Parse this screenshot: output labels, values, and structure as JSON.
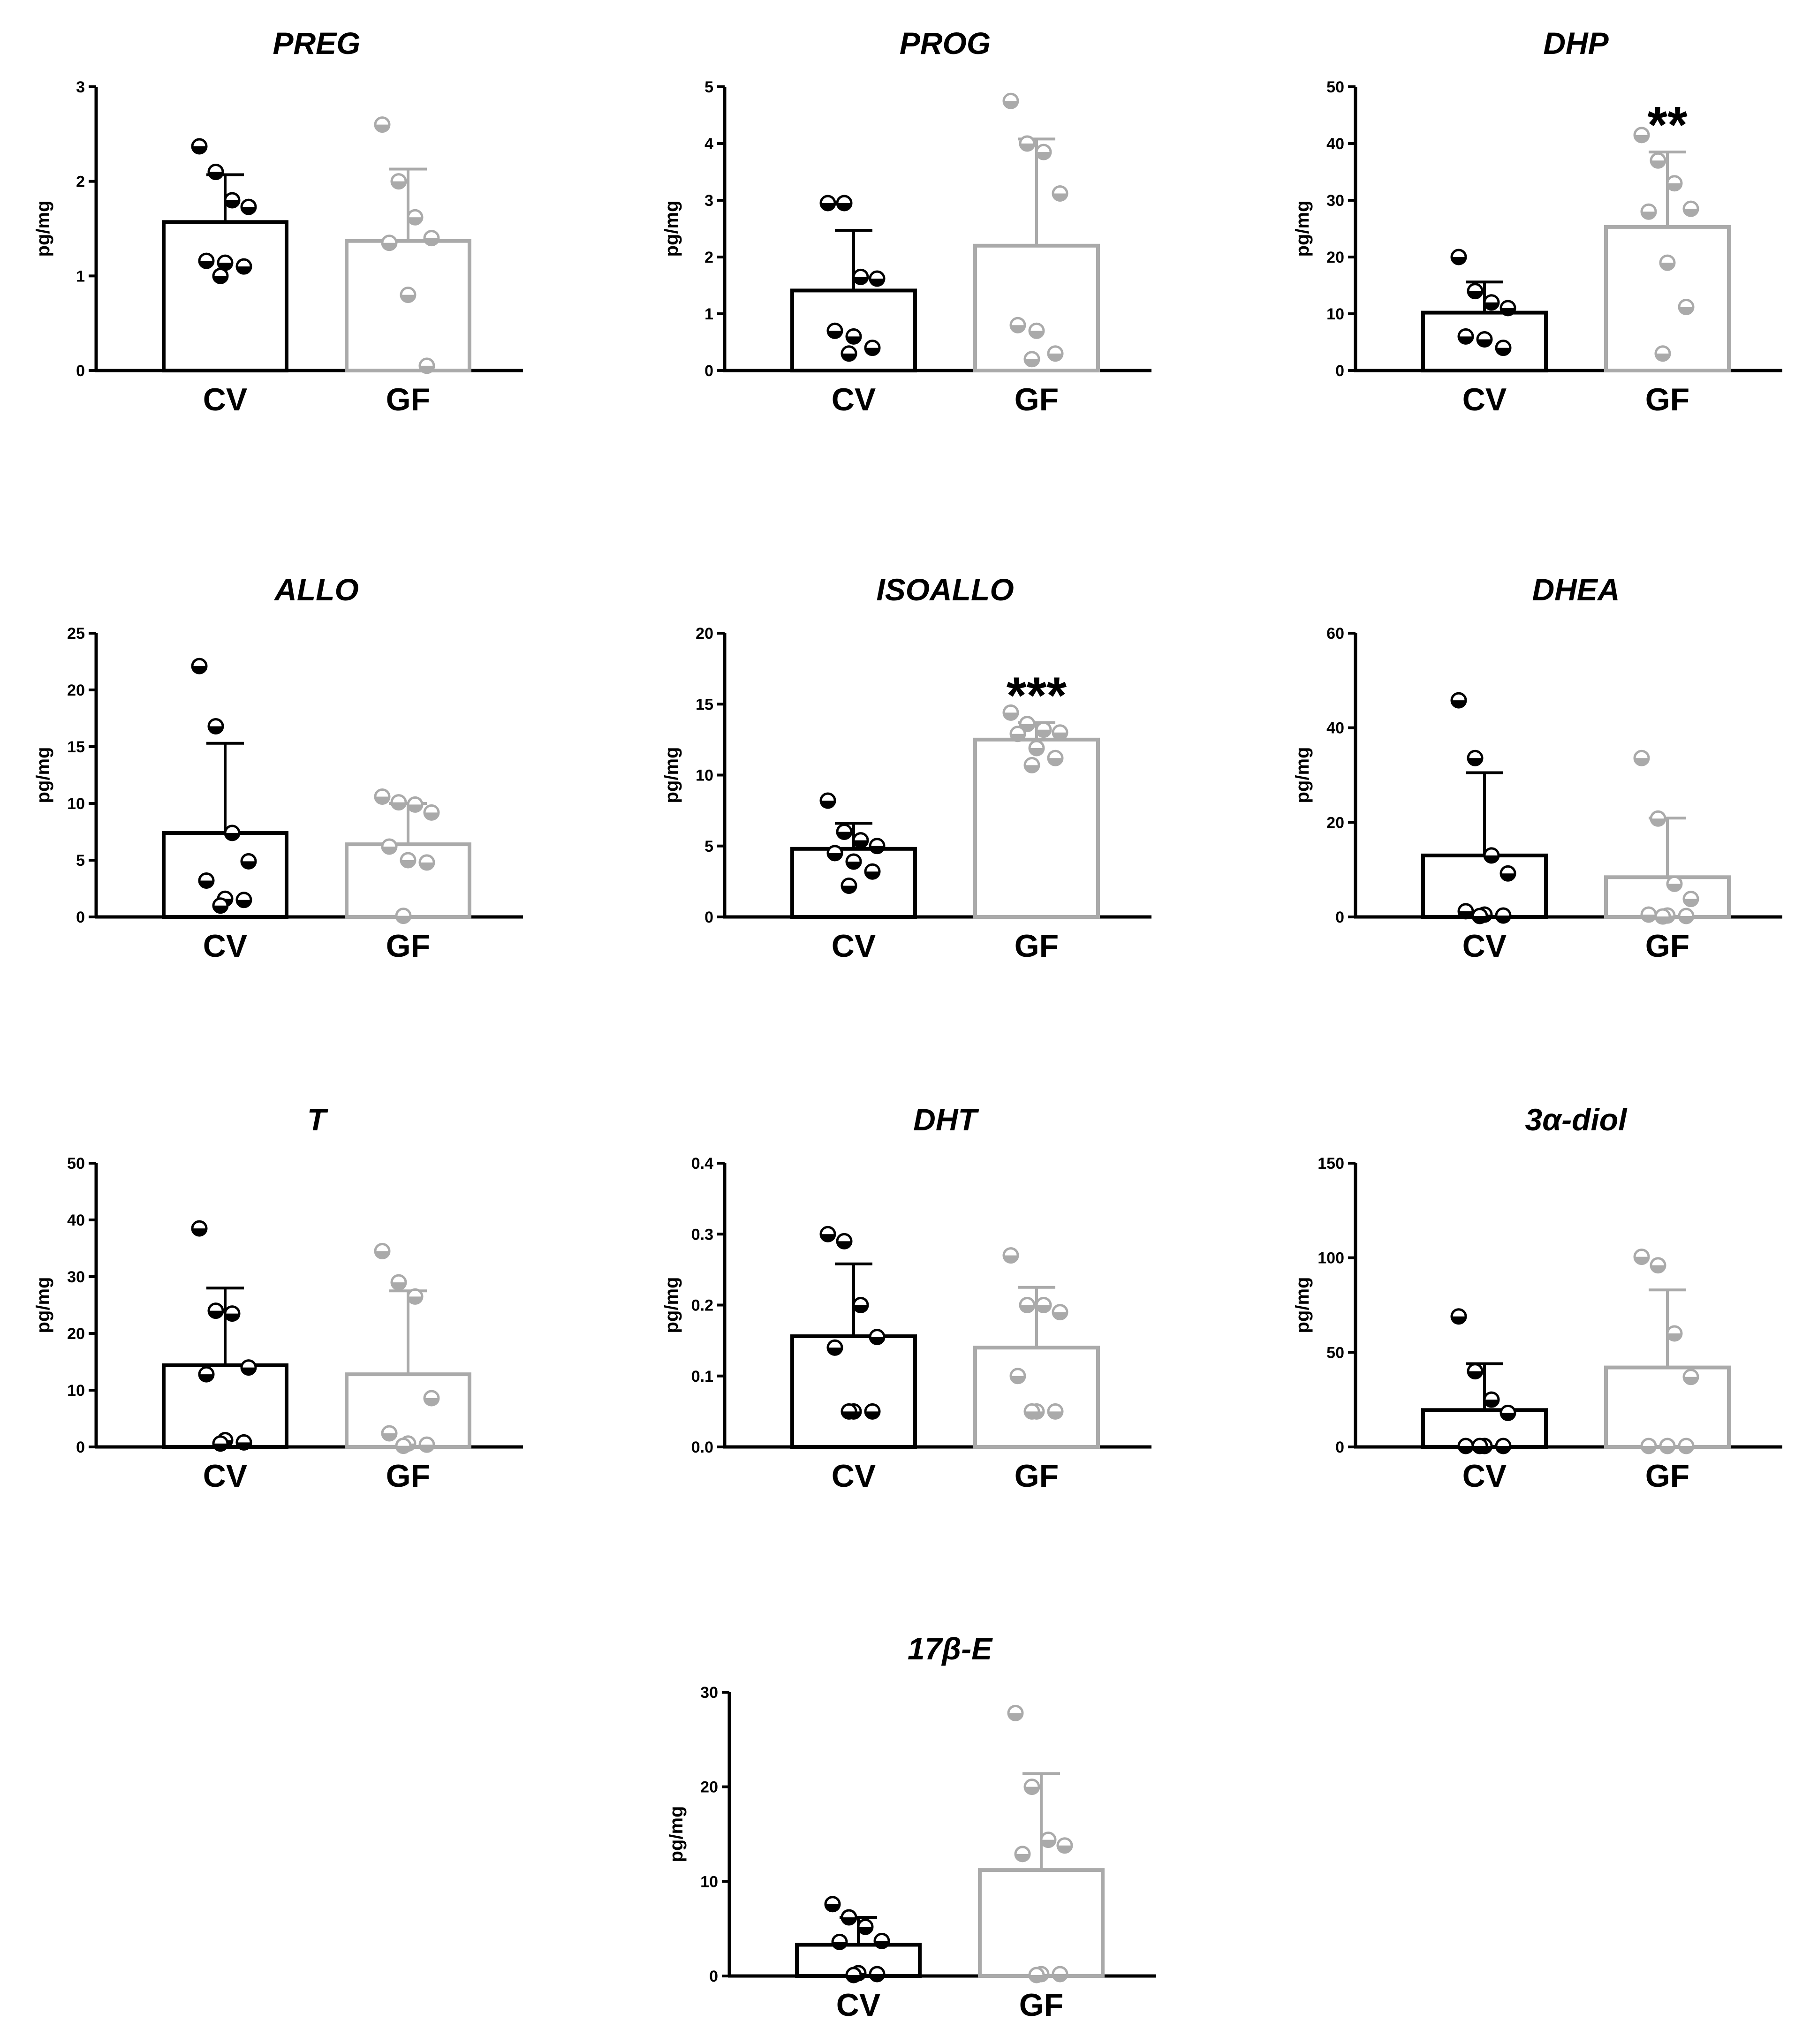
{
  "colors": {
    "cv": "#000000",
    "gf": "#aaaaaa"
  },
  "chart_data": [
    {
      "type": "bar",
      "title": "PREG",
      "ylabel": "pg/mg",
      "categories": [
        "CV",
        "GF"
      ],
      "ylim": [
        0,
        3
      ],
      "yticks": [
        "0",
        "1",
        "2",
        "3"
      ],
      "ytick_values": [
        0,
        1,
        2,
        3
      ],
      "series": [
        {
          "name": "CV",
          "value": 1.57,
          "sd": 0.5,
          "points": [
            2.37,
            2.1,
            1.8,
            1.73,
            1.16,
            1.14,
            1.1,
            1.0
          ]
        },
        {
          "name": "GF",
          "value": 1.37,
          "sd": 0.76,
          "points": [
            2.6,
            2.0,
            1.62,
            1.4,
            1.35,
            0.8,
            0.05
          ]
        }
      ],
      "significance": ""
    },
    {
      "type": "bar",
      "title": "PROG",
      "ylabel": "pg/mg",
      "categories": [
        "CV",
        "GF"
      ],
      "ylim": [
        0,
        5
      ],
      "yticks": [
        "0",
        "1",
        "2",
        "3",
        "4",
        "5"
      ],
      "ytick_values": [
        0,
        1,
        2,
        3,
        4,
        5
      ],
      "series": [
        {
          "name": "CV",
          "value": 1.41,
          "sd": 1.06,
          "points": [
            2.95,
            2.95,
            1.65,
            1.62,
            0.7,
            0.6,
            0.4,
            0.3
          ]
        },
        {
          "name": "GF",
          "value": 2.2,
          "sd": 1.88,
          "points": [
            4.75,
            4.0,
            3.85,
            3.12,
            0.8,
            0.7,
            0.3,
            0.2
          ]
        }
      ],
      "significance": ""
    },
    {
      "type": "bar",
      "title": "DHP",
      "ylabel": "pg/mg",
      "categories": [
        "CV",
        "GF"
      ],
      "ylim": [
        0,
        50
      ],
      "yticks": [
        "0",
        "10",
        "20",
        "30",
        "40",
        "50"
      ],
      "ytick_values": [
        0,
        10,
        20,
        30,
        40,
        50
      ],
      "series": [
        {
          "name": "CV",
          "value": 10.2,
          "sd": 5.4,
          "points": [
            20.0,
            14.0,
            12.0,
            11.0,
            6.0,
            5.5,
            4.0
          ]
        },
        {
          "name": "GF",
          "value": 25.3,
          "sd": 13.2,
          "points": [
            41.5,
            37.0,
            33.0,
            28.5,
            28.0,
            19.0,
            11.2,
            3.0
          ]
        }
      ],
      "significance": "**"
    },
    {
      "type": "bar",
      "title": "ALLO",
      "ylabel": "pg/mg",
      "categories": [
        "CV",
        "GF"
      ],
      "ylim": [
        0,
        25
      ],
      "yticks": [
        "0",
        "5",
        "10",
        "15",
        "20",
        "25"
      ],
      "ytick_values": [
        0,
        5,
        10,
        15,
        20,
        25
      ],
      "series": [
        {
          "name": "CV",
          "value": 7.4,
          "sd": 7.9,
          "points": [
            22.1,
            16.8,
            7.4,
            4.9,
            3.2,
            1.6,
            1.5,
            1.0
          ]
        },
        {
          "name": "GF",
          "value": 6.4,
          "sd": 3.6,
          "points": [
            10.6,
            10.1,
            9.9,
            9.2,
            6.2,
            5.0,
            4.8,
            0.1
          ]
        }
      ],
      "significance": ""
    },
    {
      "type": "bar",
      "title": "ISOALLO",
      "ylabel": "pg/mg",
      "categories": [
        "CV",
        "GF"
      ],
      "ylim": [
        0,
        20
      ],
      "yticks": [
        "0",
        "5",
        "10",
        "15",
        "20"
      ],
      "ytick_values": [
        0,
        5,
        10,
        15,
        20
      ],
      "series": [
        {
          "name": "CV",
          "value": 4.8,
          "sd": 1.8,
          "points": [
            8.2,
            6.0,
            5.4,
            5.0,
            4.5,
            3.9,
            3.2,
            2.2
          ]
        },
        {
          "name": "GF",
          "value": 12.5,
          "sd": 1.2,
          "points": [
            14.4,
            13.6,
            13.2,
            13.0,
            12.9,
            11.9,
            11.2,
            10.7
          ]
        }
      ],
      "significance": "***"
    },
    {
      "type": "bar",
      "title": "DHEA",
      "ylabel": "pg/mg",
      "categories": [
        "CV",
        "GF"
      ],
      "ylim": [
        0,
        60
      ],
      "yticks": [
        "0",
        "20",
        "40",
        "60"
      ],
      "ytick_values": [
        0,
        20,
        40,
        60
      ],
      "series": [
        {
          "name": "CV",
          "value": 13.0,
          "sd": 17.5,
          "points": [
            45.8,
            33.6,
            13.0,
            9.2,
            1.2,
            0.5,
            0.3,
            0.2
          ]
        },
        {
          "name": "GF",
          "value": 8.4,
          "sd": 12.5,
          "points": [
            33.6,
            20.8,
            7.0,
            3.8,
            0.5,
            0.3,
            0.2,
            0.1
          ]
        }
      ],
      "significance": ""
    },
    {
      "type": "bar",
      "title": "T",
      "ylabel": "pg/mg",
      "categories": [
        "CV",
        "GF"
      ],
      "ylim": [
        0,
        50
      ],
      "yticks": [
        "0",
        "10",
        "20",
        "30",
        "40",
        "50"
      ],
      "ytick_values": [
        0,
        10,
        20,
        30,
        40,
        50
      ],
      "series": [
        {
          "name": "CV",
          "value": 14.4,
          "sd": 13.6,
          "points": [
            38.5,
            24.0,
            23.5,
            14.0,
            12.8,
            1.2,
            0.8,
            0.6
          ]
        },
        {
          "name": "GF",
          "value": 12.8,
          "sd": 14.7,
          "points": [
            34.5,
            29.0,
            26.5,
            8.6,
            2.4,
            0.6,
            0.4,
            0.2
          ]
        }
      ],
      "significance": ""
    },
    {
      "type": "bar",
      "title": "DHT",
      "ylabel": "pg/mg",
      "categories": [
        "CV",
        "GF"
      ],
      "ylim": [
        0,
        0.4
      ],
      "yticks": [
        "0.0",
        "0.1",
        "0.2",
        "0.3",
        "0.4"
      ],
      "ytick_values": [
        0,
        0.1,
        0.2,
        0.3,
        0.4
      ],
      "series": [
        {
          "name": "CV",
          "value": 0.156,
          "sd": 0.102,
          "points": [
            0.3,
            0.29,
            0.2,
            0.155,
            0.14,
            0.05,
            0.05,
            0.05
          ]
        },
        {
          "name": "GF",
          "value": 0.14,
          "sd": 0.085,
          "points": [
            0.27,
            0.2,
            0.2,
            0.19,
            0.1,
            0.05,
            0.05,
            0.05
          ]
        }
      ],
      "significance": ""
    },
    {
      "type": "bar",
      "title": "3α-diol",
      "ylabel": "pg/mg",
      "categories": [
        "CV",
        "GF"
      ],
      "ylim": [
        0,
        150
      ],
      "yticks": [
        "0",
        "50",
        "100",
        "150"
      ],
      "ytick_values": [
        0,
        50,
        100,
        150
      ],
      "series": [
        {
          "name": "CV",
          "value": 19.5,
          "sd": 24.5,
          "points": [
            69.0,
            40.0,
            25.0,
            18.0,
            0.5,
            0.5,
            0.5,
            0.5
          ]
        },
        {
          "name": "GF",
          "value": 42.0,
          "sd": 41.0,
          "points": [
            100.5,
            96.0,
            60.0,
            37.0,
            0.5,
            0.5,
            0.5
          ]
        }
      ],
      "significance": ""
    },
    {
      "type": "bar",
      "title": "17β-E",
      "ylabel": "pg/mg",
      "categories": [
        "CV",
        "GF"
      ],
      "ylim": [
        0,
        30
      ],
      "yticks": [
        "0",
        "10",
        "20",
        "30"
      ],
      "ytick_values": [
        0,
        10,
        20,
        30
      ],
      "series": [
        {
          "name": "CV",
          "value": 3.3,
          "sd": 2.9,
          "points": [
            7.6,
            6.2,
            5.2,
            3.7,
            3.6,
            0.3,
            0.2,
            0.1
          ]
        },
        {
          "name": "GF",
          "value": 11.2,
          "sd": 10.2,
          "points": [
            27.8,
            20.0,
            14.4,
            13.8,
            12.9,
            0.2,
            0.2,
            0.1
          ]
        }
      ],
      "significance": ""
    }
  ]
}
